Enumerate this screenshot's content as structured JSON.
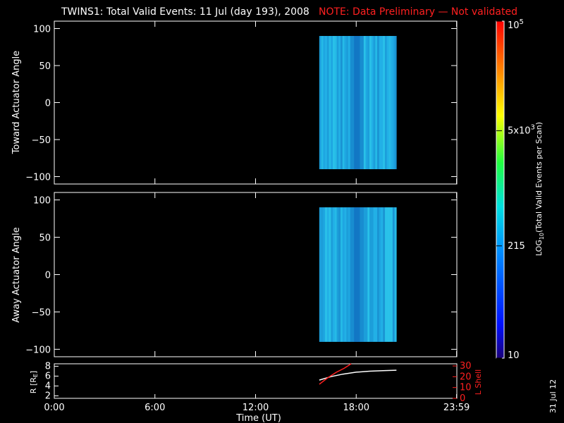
{
  "header": {
    "title": "TWINS1: Total Valid Events: 11 Jul (day 193), 2008",
    "note": "NOTE: Data Preliminary — Not validated"
  },
  "footer": {
    "date_stamp": "31 Jul 12"
  },
  "colors": {
    "note": "#ff2020",
    "lshell": "#ff2020",
    "radius": "#ffffff",
    "background": "#000000",
    "axes": "#ffffff"
  },
  "chart_data": [
    {
      "type": "heatmap",
      "ylabel": "Toward Actuator Angle",
      "ylim": [
        -110,
        110
      ],
      "yticks": [
        100,
        50,
        0,
        -50,
        -100
      ],
      "ytick_labels": [
        "100",
        "50",
        "0",
        "−50",
        "−100"
      ],
      "xlim": [
        0,
        24
      ],
      "data_x_range": [
        15.8,
        20.4
      ],
      "data_y_range": [
        -90,
        90
      ],
      "dark_band_x": 18.0,
      "level": "approximately 215–500 events per scan"
    },
    {
      "type": "heatmap",
      "ylabel": "Away Actuator Angle",
      "ylim": [
        -110,
        110
      ],
      "yticks": [
        100,
        50,
        0,
        -50,
        -100
      ],
      "ytick_labels": [
        "100",
        "50",
        "0",
        "−50",
        "−100"
      ],
      "xlim": [
        0,
        24
      ],
      "data_x_range": [
        15.8,
        20.4
      ],
      "data_y_range": [
        -90,
        90
      ],
      "dark_band_x": 18.0,
      "level": "approximately 215–500 events per scan"
    },
    {
      "type": "line",
      "xlabel": "Time (UT)",
      "xlim": [
        0,
        24
      ],
      "xticks": [
        0,
        6,
        12,
        18,
        23.983
      ],
      "xtick_labels": [
        "0:00",
        "6:00",
        "12:00",
        "18:00",
        "23:59"
      ],
      "left_axis": {
        "label": "R [R",
        "label_sub": "E",
        "label_end": "]",
        "ylim": [
          1.5,
          8.5
        ],
        "yticks": [
          2,
          4,
          6,
          8
        ],
        "ytick_labels": [
          "2",
          "4",
          "6",
          "8"
        ]
      },
      "right_axis": {
        "label": "L Shell",
        "ylim": [
          0,
          32
        ],
        "yticks": [
          0,
          10,
          20,
          30
        ],
        "ytick_labels": [
          "0",
          "10",
          "20",
          "30"
        ]
      },
      "series": [
        {
          "axis": "left",
          "color": "#ffffff",
          "x": [
            15.8,
            16.5,
            17.2,
            18.0,
            18.8,
            19.6,
            20.4
          ],
          "y": [
            5.2,
            5.9,
            6.4,
            6.8,
            7.0,
            7.1,
            7.2
          ]
        },
        {
          "axis": "right",
          "color": "#ff2020",
          "x": [
            15.8,
            16.3,
            16.8,
            17.3,
            17.7
          ],
          "y": [
            13,
            19,
            24,
            28,
            32
          ]
        }
      ]
    }
  ],
  "colorbar": {
    "label": "LOG",
    "label_sub": "10",
    "label_end": "(Total Valid Events per Scan)",
    "scale": "log",
    "range": [
      10,
      100000
    ],
    "ticks": [
      {
        "value": 10,
        "label": "10",
        "sup": ""
      },
      {
        "value": 215,
        "label": "215",
        "sup": ""
      },
      {
        "value": 5000,
        "label": "5x10",
        "sup": "3"
      },
      {
        "value": 100000,
        "label": "10",
        "sup": "5"
      }
    ]
  }
}
